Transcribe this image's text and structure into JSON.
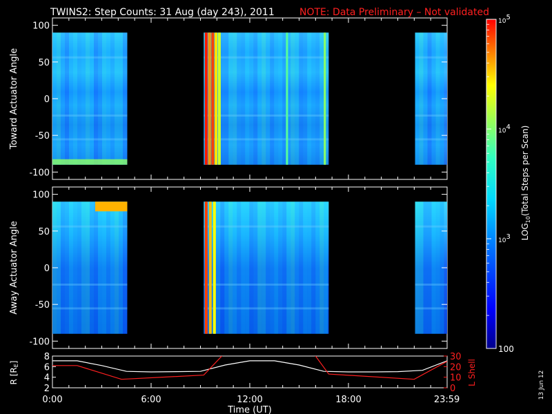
{
  "title": "TWINS2: Step Counts: 31 Aug (day 243), 2011",
  "note": "NOTE: Data Preliminary – Not validated",
  "side_date": "13 Jun 12",
  "colors": {
    "background": "#000000",
    "foreground": "#ffffff",
    "note": "#ff2020",
    "lshell": "#ff2020"
  },
  "chart_data": [
    {
      "type": "heatmap",
      "ylabel": "Toward Actuator Angle",
      "ylim": [
        -110,
        110
      ],
      "yticks": [
        100,
        50,
        0,
        -50,
        -100
      ],
      "ytick_labels": [
        "100",
        "50",
        "0",
        "-50",
        "-100"
      ],
      "xlim": [
        0,
        24
      ],
      "data_ylim": [
        -90,
        90
      ],
      "data_segments_hours": [
        [
          0,
          4.55
        ],
        [
          9.2,
          16.8
        ],
        [
          22.05,
          24
        ]
      ],
      "values_note": "log10 step counts, mostly ~2.7-3.1 with hot bands ~4.5-5 near 09:15-10:20 UT"
    },
    {
      "type": "heatmap",
      "ylabel": "Away Actuator Angle",
      "ylim": [
        -110,
        110
      ],
      "yticks": [
        100,
        50,
        0,
        -50,
        -100
      ],
      "ytick_labels": [
        "100",
        "50",
        "0",
        "-50",
        "-100"
      ],
      "xlim": [
        0,
        24
      ],
      "data_ylim": [
        -90,
        90
      ],
      "data_segments_hours": [
        [
          0,
          4.55
        ],
        [
          9.2,
          16.8
        ],
        [
          22.05,
          24
        ]
      ],
      "values_note": "log10 step counts, mostly ~2.4-3.1 with hot bands ~4.5-5 near 09:15-10:00 UT and 02:40-04:30 UT at high angles"
    },
    {
      "type": "line",
      "ylabel": "R [Rₑ]",
      "ylabel_parts": [
        "R [R",
        "E",
        "]"
      ],
      "ylim": [
        2,
        8
      ],
      "yticks": [
        2,
        4,
        6,
        8
      ],
      "ytick_labels": [
        "2",
        "4",
        "6",
        "8"
      ],
      "y2label": "L Shell",
      "y2lim": [
        0,
        30
      ],
      "y2ticks": [
        0,
        10,
        20,
        30
      ],
      "y2tick_labels": [
        "0",
        "10",
        "20",
        "30"
      ],
      "xlabel": "Time (UT)",
      "xlim": [
        0,
        24
      ],
      "xticks": [
        0,
        6,
        12,
        18,
        23.983
      ],
      "xtick_labels": [
        "0:00",
        "6:00",
        "12:00",
        "18:00",
        "23:59"
      ],
      "series": [
        {
          "color": "#ffffff",
          "x": [
            0,
            1.5,
            3,
            4.5,
            6,
            7.5,
            9,
            10.5,
            12,
            13.5,
            15,
            16.5,
            18,
            19.5,
            21,
            22.5,
            24
          ],
          "y": [
            7.1,
            7.1,
            6.2,
            5.1,
            5.0,
            5.05,
            5.1,
            6.3,
            7.1,
            7.1,
            6.3,
            5.1,
            5.0,
            5.0,
            5.05,
            5.3,
            7.1
          ]
        },
        {
          "color": "#ff2020",
          "axis": "right",
          "x": [
            0,
            1.5,
            4.2,
            9.2,
            10.3,
            11.0,
            15.3,
            16.0,
            16.8,
            22.0,
            24
          ],
          "y": [
            21,
            21,
            8,
            12,
            30,
            45,
            45,
            30,
            13,
            8,
            25
          ]
        }
      ]
    }
  ],
  "colorbar": {
    "label_parts": [
      "LOG",
      "10",
      "(Total Steps per Scan)"
    ],
    "scale": "log",
    "range": [
      100,
      100000
    ],
    "ticks": [
      {
        "value": 100000,
        "base": "10",
        "exp": "5"
      },
      {
        "value": 10000,
        "base": "10",
        "exp": "4"
      },
      {
        "value": 1000,
        "base": "10",
        "exp": "3"
      },
      {
        "value": 100,
        "text": "100"
      }
    ]
  }
}
